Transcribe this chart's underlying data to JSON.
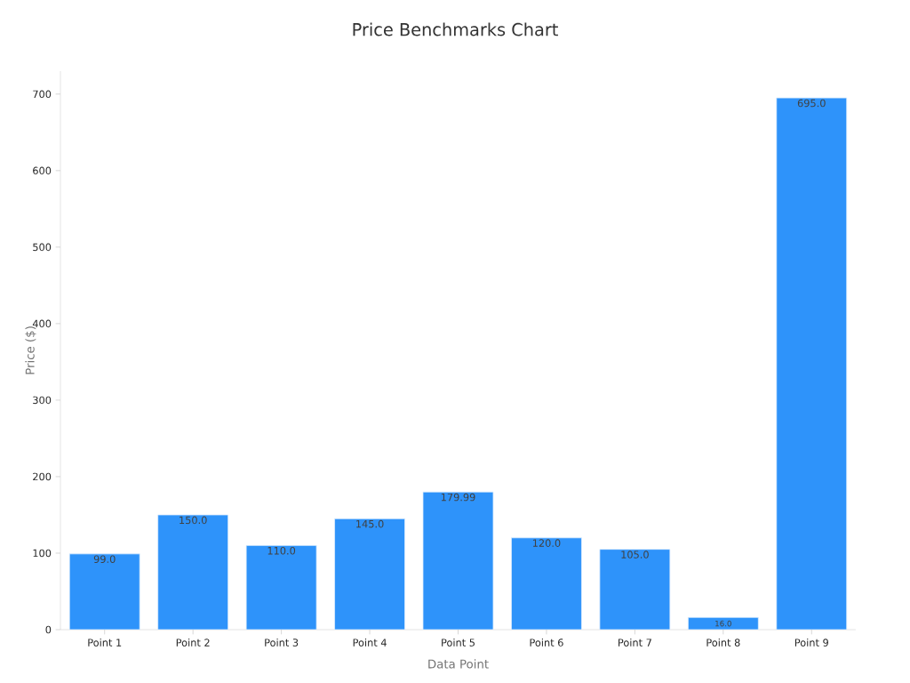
{
  "chart_data": {
    "type": "bar",
    "title": "Price Benchmarks Chart",
    "xlabel": "Data Point",
    "ylabel": "Price ($)",
    "categories": [
      "Point 1",
      "Point 2",
      "Point 3",
      "Point 4",
      "Point 5",
      "Point 6",
      "Point 7",
      "Point 8",
      "Point 9"
    ],
    "values": [
      99,
      150,
      110,
      145,
      179.99,
      120,
      105,
      16,
      695
    ],
    "value_labels": [
      "99.0",
      "150.0",
      "110.0",
      "145.0",
      "179.99",
      "120.0",
      "105.0",
      "16.0",
      "695.0"
    ],
    "color": "#2e93fa",
    "ylim": [
      0,
      730
    ],
    "yticks": [
      0,
      100,
      200,
      300,
      400,
      500,
      600,
      700
    ],
    "grid": false
  }
}
